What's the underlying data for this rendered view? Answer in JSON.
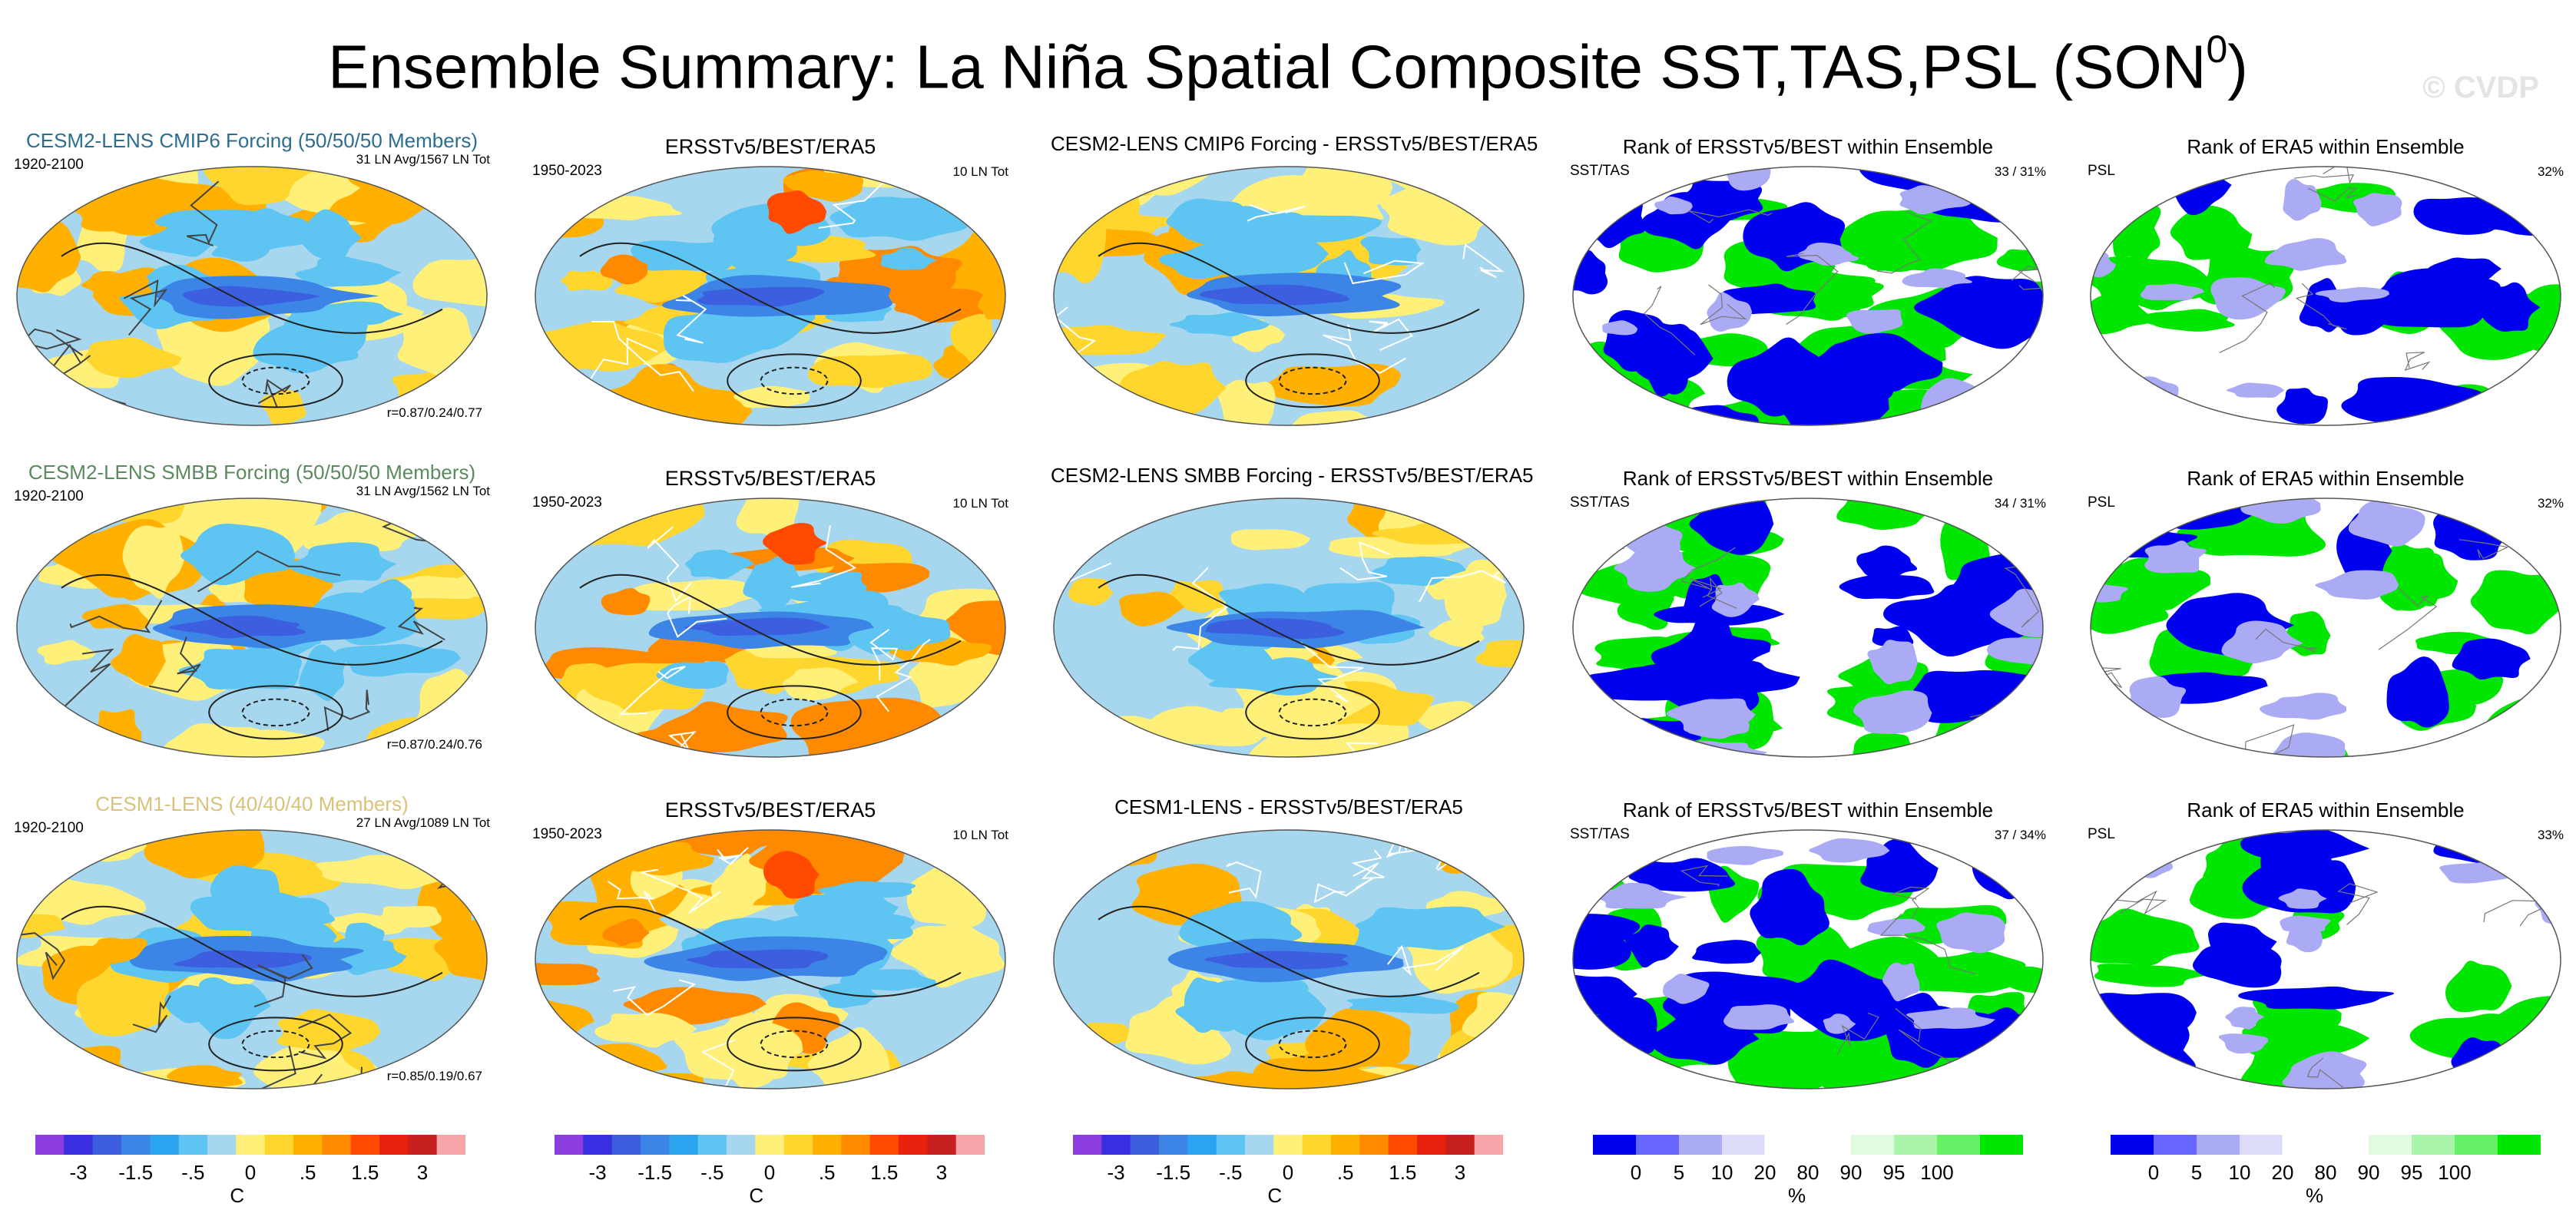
{
  "title": {
    "text": "Ensemble Summary: La Niña Spatial Composite SST,TAS,PSL (SON",
    "sup": "0",
    "close": ")"
  },
  "watermark": "© CVDP",
  "rows": [
    {
      "ens": {
        "title": "CESM2-LENS CMIP6 Forcing (50/50/50 Members)",
        "title_color": "#2c6e8f",
        "period": "1920-2100",
        "count": "31 LN Avg/1567 LN Tot",
        "stat": "r=0.87/0.24/0.77"
      },
      "obs": {
        "title": "ERSSTv5/BEST/ERA5",
        "period": "1950-2023",
        "count": "10 LN Tot"
      },
      "diff": {
        "title": "CESM2-LENS CMIP6 Forcing - ERSSTv5/BEST/ERA5"
      },
      "rank_sst": {
        "title": "Rank of ERSSTv5/BEST within Ensemble",
        "var": "SST/TAS",
        "pct": "33 /  31%"
      },
      "rank_psl": {
        "title": "Rank of ERA5 within Ensemble",
        "var": "PSL",
        "pct": "32%"
      }
    },
    {
      "ens": {
        "title": "CESM2-LENS SMBB Forcing (50/50/50 Members)",
        "title_color": "#5a8a5e",
        "period": "1920-2100",
        "count": "31 LN Avg/1562 LN Tot",
        "stat": "r=0.87/0.24/0.76"
      },
      "obs": {
        "title": "ERSSTv5/BEST/ERA5",
        "period": "1950-2023",
        "count": "10 LN Tot"
      },
      "diff": {
        "title": "CESM2-LENS SMBB Forcing - ERSSTv5/BEST/ERA5"
      },
      "rank_sst": {
        "title": "Rank of ERSSTv5/BEST within Ensemble",
        "var": "SST/TAS",
        "pct": "34 /  31%"
      },
      "rank_psl": {
        "title": "Rank of ERA5 within Ensemble",
        "var": "PSL",
        "pct": "32%"
      }
    },
    {
      "ens": {
        "title": "CESM1-LENS (40/40/40 Members)",
        "title_color": "#d9c27a",
        "period": "1920-2100",
        "count": "27 LN Avg/1089 LN Tot",
        "stat": "r=0.85/0.19/0.67"
      },
      "obs": {
        "title": "ERSSTv5/BEST/ERA5",
        "period": "1950-2023",
        "count": "10 LN Tot"
      },
      "diff": {
        "title": "CESM1-LENS - ERSSTv5/BEST/ERA5"
      },
      "rank_sst": {
        "title": "Rank of ERSSTv5/BEST within Ensemble",
        "var": "SST/TAS",
        "pct": "37 /  34%"
      },
      "rank_psl": {
        "title": "Rank of ERA5 within Ensemble",
        "var": "PSL",
        "pct": "33%"
      }
    }
  ],
  "colorbar_anomaly": {
    "units": "C",
    "tick_labels": [
      "-3",
      "-1.5",
      "-.5",
      "0",
      ".5",
      "1.5",
      "3"
    ],
    "colors": [
      "#8c3de0",
      "#3a2fe0",
      "#3c5fe0",
      "#3c84e6",
      "#2aa4ef",
      "#5ec4f2",
      "#a7d6ef",
      "#fff07a",
      "#ffd62e",
      "#ffb000",
      "#ff8a00",
      "#ff4a00",
      "#e8200e",
      "#c81f1f",
      "#f6a6a8"
    ]
  },
  "colorbar_rank": {
    "units": "%",
    "tick_labels": [
      "0",
      "5",
      "10",
      "20",
      "80",
      "90",
      "95",
      "100"
    ],
    "colors": [
      "#0000f0",
      "#6666ff",
      "#aaaaf5",
      "#dcdcf8",
      "#ffffff",
      "#ffffff",
      "#e0fbe0",
      "#aaf5aa",
      "#66f066",
      "#00e600"
    ]
  }
}
